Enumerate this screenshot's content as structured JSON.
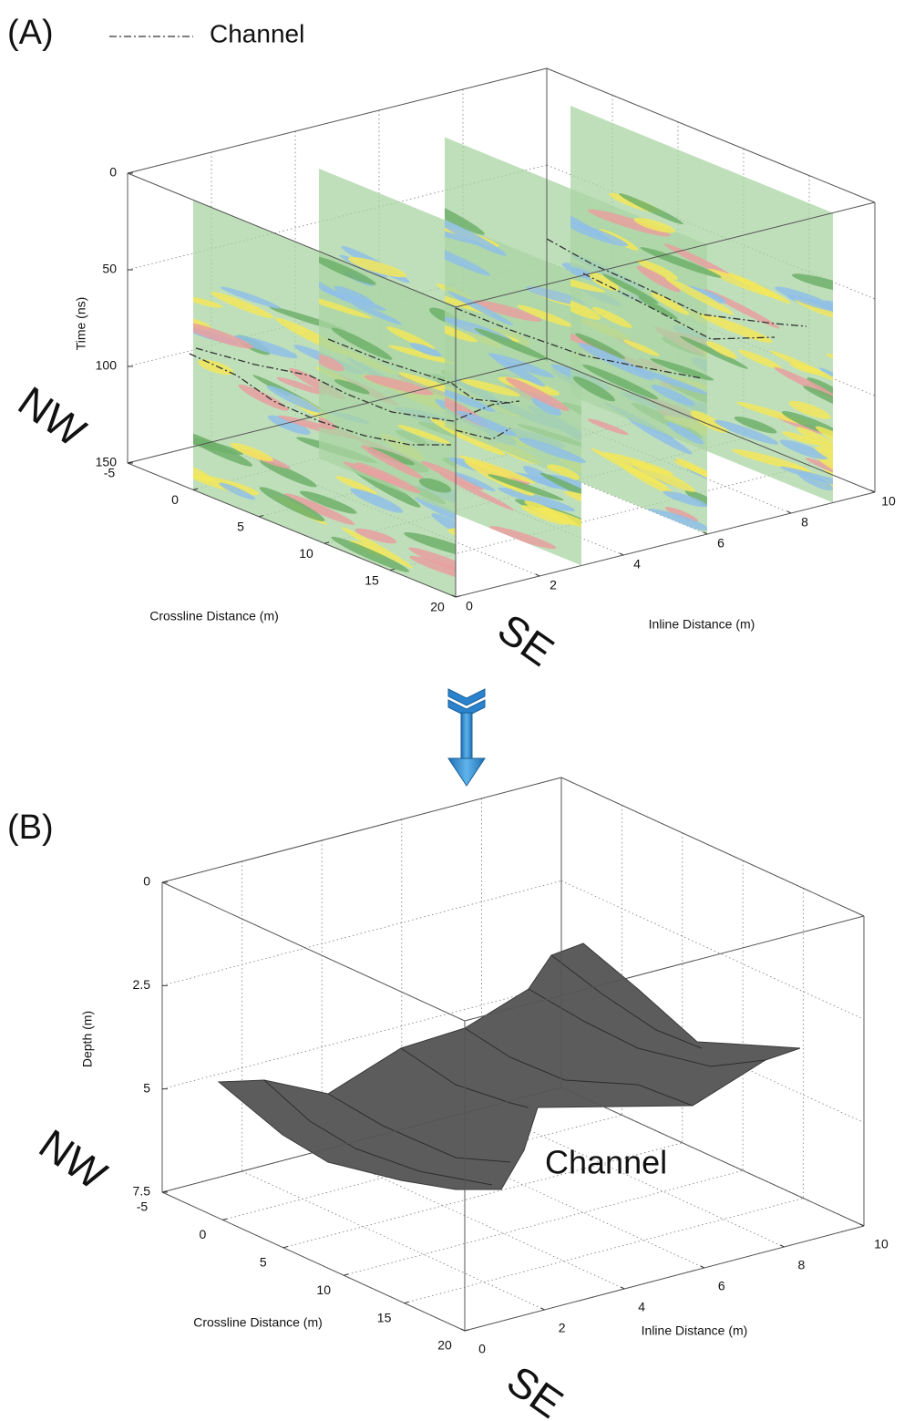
{
  "chart_data": [
    {
      "type": "3d-slices",
      "panel_label": "(A)",
      "legend": [
        "Channel"
      ],
      "xlabel": "Crossline Distance (m)",
      "xlim": [
        -5,
        20
      ],
      "xticks": [
        -5,
        0,
        5,
        10,
        15,
        20
      ],
      "ylabel": "Inline Distance (m)",
      "ylim": [
        0,
        10
      ],
      "yticks": [
        0,
        2,
        4,
        6,
        8,
        10
      ],
      "zlabel": "Time (ns)",
      "zlim": [
        0,
        150
      ],
      "zticks": [
        0,
        50,
        100,
        150
      ],
      "compass": [
        "NW",
        "SE"
      ],
      "grid": true
    },
    {
      "type": "3d-surface",
      "panel_label": "(B)",
      "annotation": "Channel",
      "xlabel": "Crossline Distance (m)",
      "xlim": [
        -5,
        20
      ],
      "xticks": [
        -5,
        0,
        5,
        10,
        15,
        20
      ],
      "ylabel": "Inline Distance (m)",
      "ylim": [
        0,
        10
      ],
      "yticks": [
        0,
        2,
        4,
        6,
        8,
        10
      ],
      "zlabel": "Depth (m)",
      "zlim": [
        0,
        7.5
      ],
      "zticks": [
        0,
        2.5,
        5,
        7.5
      ],
      "compass": [
        "NW",
        "SE"
      ],
      "grid": true
    }
  ]
}
